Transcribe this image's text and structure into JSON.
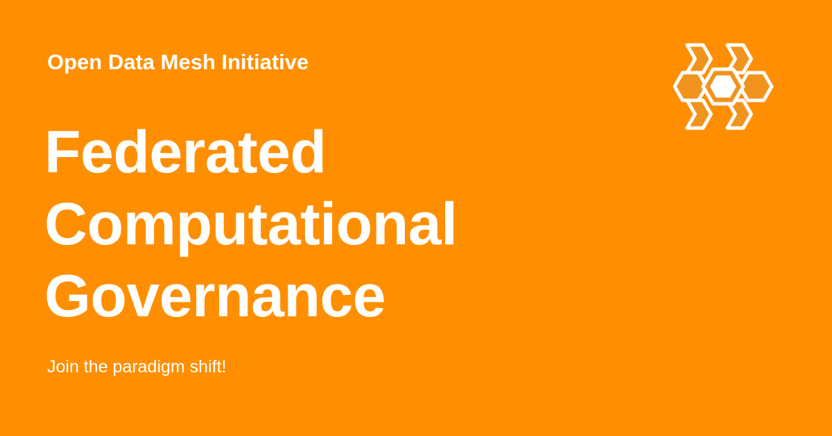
{
  "card": {
    "organization": "Open Data Mesh Initiative",
    "headline_lines": [
      "Federated",
      "Computational",
      "Governance"
    ],
    "tagline": "Join the paradigm shift!",
    "background_color": "#FF8F00",
    "text_color": "#FFFFFF",
    "logo_icon": "honeycomb-hexagon-icon",
    "logo_fill_color": "#F0941E"
  }
}
